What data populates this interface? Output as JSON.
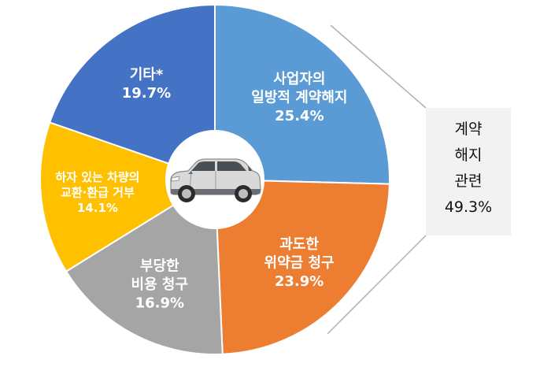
{
  "chart_data": {
    "type": "pie",
    "variant": "donut",
    "slices": [
      {
        "label_lines": [
          "사업자의",
          "일방적 계약해지"
        ],
        "value": 25.4,
        "value_label": "25.4%",
        "color": "#5b9bd5",
        "text_color": "#ffffff"
      },
      {
        "label_lines": [
          "과도한",
          "위약금 청구"
        ],
        "value": 23.9,
        "value_label": "23.9%",
        "color": "#ed7d31",
        "text_color": "#ffffff"
      },
      {
        "label_lines": [
          "부당한",
          "비용 청구"
        ],
        "value": 16.9,
        "value_label": "16.9%",
        "color": "#a5a5a5",
        "text_color": "#ffffff"
      },
      {
        "label_lines": [
          "하자 있는 차량의",
          "교환·환급 거부"
        ],
        "value": 14.1,
        "value_label": "14.1%",
        "color": "#ffc000",
        "text_color": "#ffffff"
      },
      {
        "label_lines": [
          "기타*"
        ],
        "value": 19.7,
        "value_label": "19.7%",
        "color": "#4472c4",
        "text_color": "#ffffff"
      }
    ],
    "center_icon": "suv-car-icon",
    "callout": {
      "lines": [
        "계약",
        "해지",
        "관련"
      ],
      "value_label": "49.3%",
      "groups": [
        "사업자의 일방적 계약해지",
        "과도한 위약금 청구"
      ]
    }
  }
}
